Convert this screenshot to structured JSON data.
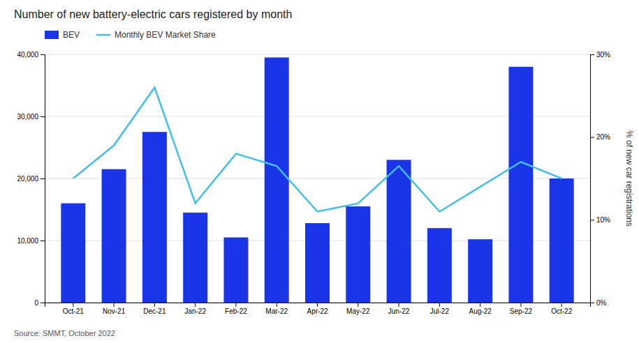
{
  "chart_data": {
    "type": "bar",
    "title": "Number of new battery-electric cars registered by month",
    "categories": [
      "Oct-21",
      "Nov-21",
      "Dec-21",
      "Jan-22",
      "Feb-22",
      "Mar-22",
      "Apr-22",
      "May-22",
      "Jun-22",
      "Jul-22",
      "Aug-22",
      "Sep-22",
      "Oct-22"
    ],
    "series": [
      {
        "name": "BEV",
        "type": "bar",
        "color": "#1a35e8",
        "values": [
          16000,
          21500,
          27500,
          14500,
          10500,
          39500,
          12800,
          15500,
          23000,
          12000,
          10200,
          38000,
          20000
        ]
      },
      {
        "name": "Monthly BEV Market Share",
        "type": "line",
        "axis": "y2",
        "color": "#40c0e8",
        "values": [
          15.0,
          19.0,
          26.0,
          12.0,
          18.0,
          16.5,
          11.0,
          12.0,
          16.5,
          11.0,
          14.0,
          17.0,
          15.0
        ]
      }
    ],
    "ylim": [
      0,
      40000
    ],
    "yticks": [
      0,
      {
        "value": 10000,
        "label": "10,000"
      },
      {
        "value": 20000,
        "label": "20,000"
      },
      {
        "value": 30000,
        "label": "30,000"
      },
      {
        "value": 40000,
        "label": "40,000"
      }
    ],
    "y2lim": [
      0,
      30
    ],
    "y2ticks": [
      {
        "value": 0,
        "label": "0%"
      },
      {
        "value": 10,
        "label": "10%"
      },
      {
        "value": 20,
        "label": "20%"
      },
      {
        "value": 30,
        "label": "30%"
      }
    ],
    "y2label": "% of new car registrations",
    "annotations": [
      "Source: SMMT, October 2022"
    ],
    "grid": true,
    "legend": "top-left"
  }
}
